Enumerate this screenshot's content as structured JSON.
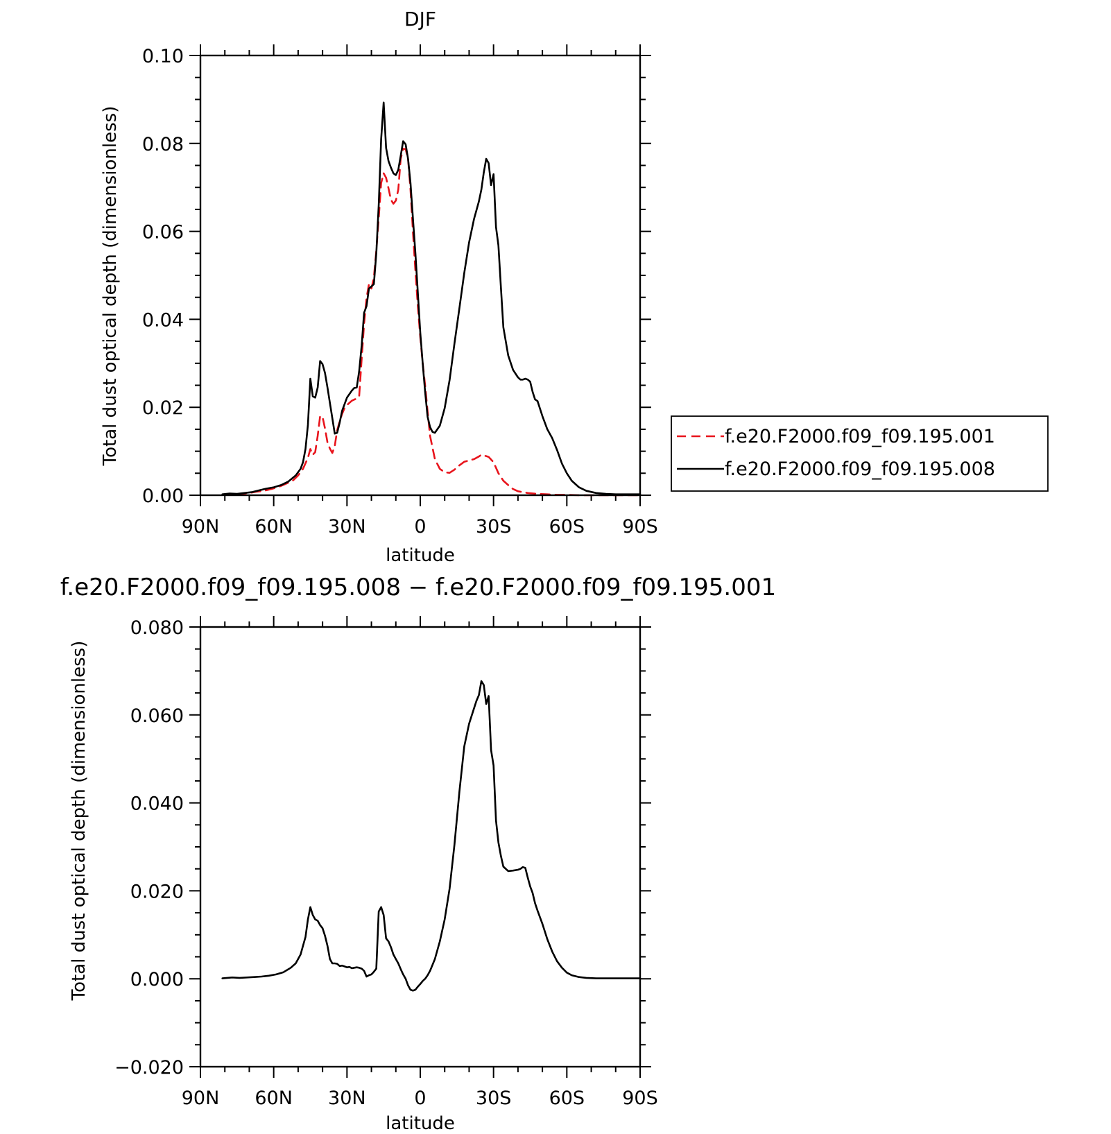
{
  "chart_data": [
    {
      "type": "line",
      "title": "DJF",
      "xlabel": "latitude",
      "ylabel": "Total dust optical depth (dimensionless)",
      "x_ticks": [
        {
          "value": 90,
          "label": "90N"
        },
        {
          "value": 60,
          "label": "60N"
        },
        {
          "value": 30,
          "label": "30N"
        },
        {
          "value": 0,
          "label": "0"
        },
        {
          "value": -30,
          "label": "30S"
        },
        {
          "value": -60,
          "label": "60S"
        },
        {
          "value": -90,
          "label": "90S"
        }
      ],
      "y_ticks": [
        "0.00",
        "0.02",
        "0.04",
        "0.06",
        "0.08",
        "0.10"
      ],
      "xlim": [
        90,
        -90
      ],
      "ylim": [
        0,
        0.1
      ],
      "legend_position": "right",
      "series": [
        {
          "name": "f.e20.F2000.f09_f09.195.001",
          "color": "#e8141c",
          "dash": "dashed",
          "x": [
            81,
            77,
            73,
            70,
            67,
            64,
            61,
            58,
            55,
            52,
            50,
            48,
            46,
            45,
            44,
            43,
            42,
            41,
            40,
            39,
            38,
            37,
            36,
            35,
            34,
            33,
            32,
            31,
            30,
            28,
            26,
            25,
            24,
            23,
            22,
            21,
            20,
            19,
            18,
            17,
            16,
            15,
            14,
            13,
            12,
            11,
            10,
            9,
            8,
            7,
            6,
            5,
            4,
            3,
            2,
            1,
            0,
            -1,
            -2,
            -3,
            -4,
            -6,
            -8,
            -10,
            -12,
            -14,
            -16,
            -18,
            -20,
            -22,
            -24,
            -25,
            -26,
            -27,
            -28,
            -30,
            -32,
            -34,
            -36,
            -38,
            -40,
            -44,
            -48,
            -52,
            -56,
            -60,
            -65,
            -70,
            -75,
            -80,
            -85,
            -90
          ],
          "y": [
            0.0001,
            0.0002,
            0.0003,
            0.0005,
            0.0008,
            0.001,
            0.0014,
            0.0019,
            0.0026,
            0.0034,
            0.0045,
            0.006,
            0.0085,
            0.0105,
            0.0092,
            0.0098,
            0.0135,
            0.018,
            0.0178,
            0.0152,
            0.012,
            0.0106,
            0.0096,
            0.0112,
            0.0148,
            0.0168,
            0.0185,
            0.0198,
            0.0205,
            0.0215,
            0.022,
            0.0225,
            0.031,
            0.039,
            0.0448,
            0.048,
            0.047,
            0.0495,
            0.0556,
            0.063,
            0.071,
            0.0732,
            0.0722,
            0.0698,
            0.0672,
            0.0663,
            0.067,
            0.0695,
            0.0765,
            0.0788,
            0.0787,
            0.0765,
            0.0695,
            0.06,
            0.051,
            0.043,
            0.036,
            0.03,
            0.025,
            0.019,
            0.0135,
            0.0082,
            0.006,
            0.0052,
            0.0051,
            0.0058,
            0.0068,
            0.0076,
            0.0079,
            0.0082,
            0.0088,
            0.0092,
            0.009,
            0.0089,
            0.0087,
            0.0075,
            0.005,
            0.0033,
            0.0023,
            0.0014,
            0.0009,
            0.0005,
            0.0003,
            0.0002,
            0.0001,
            0.0001,
            0,
            0,
            0,
            0,
            0,
            0
          ]
        },
        {
          "name": "f.e20.F2000.f09_f09.195.008",
          "color": "#000000",
          "dash": "solid",
          "x": [
            81,
            78,
            75,
            72,
            69,
            66,
            63,
            60,
            57,
            54,
            51,
            49,
            48,
            47,
            46,
            45,
            44,
            43,
            42,
            41,
            40,
            39,
            38,
            37,
            36,
            35,
            34,
            33,
            32,
            30,
            28,
            27,
            26,
            25,
            24,
            23,
            22,
            21,
            20,
            19,
            18,
            17,
            16,
            15,
            14,
            13,
            12,
            11,
            10,
            9,
            8,
            7,
            6,
            5,
            4,
            3,
            2,
            1,
            0,
            -1,
            -2,
            -3,
            -4,
            -5,
            -6,
            -8,
            -10,
            -12,
            -14,
            -16,
            -18,
            -20,
            -22,
            -23,
            -24,
            -25,
            -26,
            -27,
            -28,
            -29,
            -30,
            -31,
            -32,
            -33,
            -34,
            -36,
            -38,
            -40,
            -41,
            -42,
            -43,
            -44,
            -45,
            -46,
            -47,
            -48,
            -50,
            -52,
            -54,
            -56,
            -58,
            -60,
            -62,
            -65,
            -68,
            -72,
            -76,
            -80,
            -85,
            -90
          ],
          "y": [
            0.0002,
            0.0004,
            0.0003,
            0.0005,
            0.0007,
            0.0011,
            0.0015,
            0.0018,
            0.0023,
            0.0031,
            0.0045,
            0.006,
            0.0075,
            0.0105,
            0.016,
            0.0265,
            0.0225,
            0.0222,
            0.0245,
            0.0305,
            0.0298,
            0.0278,
            0.0245,
            0.021,
            0.0175,
            0.014,
            0.0142,
            0.0165,
            0.0192,
            0.0222,
            0.0238,
            0.0244,
            0.0245,
            0.0282,
            0.034,
            0.0415,
            0.043,
            0.047,
            0.0475,
            0.048,
            0.055,
            0.066,
            0.081,
            0.0893,
            0.079,
            0.076,
            0.0745,
            0.0732,
            0.0728,
            0.074,
            0.0772,
            0.0805,
            0.0798,
            0.0765,
            0.071,
            0.063,
            0.055,
            0.046,
            0.037,
            0.03,
            0.0235,
            0.0178,
            0.0155,
            0.0144,
            0.0142,
            0.0158,
            0.0198,
            0.0262,
            0.0345,
            0.0425,
            0.0505,
            0.0575,
            0.0628,
            0.0648,
            0.0668,
            0.0695,
            0.0734,
            0.0765,
            0.0755,
            0.0705,
            0.073,
            0.061,
            0.0568,
            0.0475,
            0.0382,
            0.0318,
            0.0285,
            0.0268,
            0.0263,
            0.0263,
            0.0265,
            0.0263,
            0.0258,
            0.0235,
            0.0218,
            0.0214,
            0.018,
            0.015,
            0.013,
            0.0103,
            0.0072,
            0.005,
            0.0033,
            0.0018,
            0.001,
            0.0005,
            0.0003,
            0.0002,
            0.0002,
            0.0002
          ]
        }
      ]
    },
    {
      "type": "line",
      "title": "f.e20.F2000.f09_f09.195.008 − f.e20.F2000.f09_f09.195.001",
      "xlabel": "latitude",
      "ylabel": "Total dust optical depth (dimensionless)",
      "x_ticks": [
        {
          "value": 90,
          "label": "90N"
        },
        {
          "value": 60,
          "label": "60N"
        },
        {
          "value": 30,
          "label": "30N"
        },
        {
          "value": 0,
          "label": "0"
        },
        {
          "value": -30,
          "label": "30S"
        },
        {
          "value": -60,
          "label": "60S"
        },
        {
          "value": -90,
          "label": "90S"
        }
      ],
      "y_ticks": [
        "−0.020",
        "0.000",
        "0.020",
        "0.040",
        "0.060",
        "0.080"
      ],
      "xlim": [
        90,
        -90
      ],
      "ylim": [
        -0.02,
        0.08
      ],
      "series": [
        {
          "color": "#000000",
          "dash": "solid",
          "x": [
            81,
            79,
            77,
            74,
            71,
            68,
            65,
            62,
            59,
            56,
            53,
            51,
            49,
            48,
            47,
            46,
            45,
            44,
            43,
            42,
            41,
            40,
            39,
            38,
            37,
            36,
            35,
            34,
            33,
            32,
            31,
            30,
            29,
            28,
            27,
            26,
            25,
            24,
            23,
            22,
            21,
            20,
            19,
            18,
            17,
            16,
            15,
            14,
            13,
            12,
            11,
            10,
            9,
            8,
            7,
            6,
            5,
            4,
            3,
            2,
            1,
            0,
            -1,
            -2,
            -3,
            -4,
            -6,
            -8,
            -10,
            -12,
            -14,
            -16,
            -18,
            -20,
            -22,
            -23,
            -24,
            -25,
            -26,
            -27,
            -28,
            -29,
            -30,
            -31,
            -32,
            -33,
            -34,
            -36,
            -38,
            -40,
            -41,
            -42,
            -43,
            -44,
            -45,
            -46,
            -47,
            -48,
            -50,
            -52,
            -54,
            -56,
            -58,
            -60,
            -62,
            -65,
            -68,
            -72,
            -76,
            -80,
            -85,
            -90
          ],
          "y": [
            0.0001,
            0.0002,
            0.0003,
            0.0002,
            0.0003,
            0.0004,
            0.0005,
            0.0007,
            0.001,
            0.0015,
            0.0025,
            0.0035,
            0.0055,
            0.0075,
            0.0095,
            0.0135,
            0.0163,
            0.0145,
            0.0135,
            0.0132,
            0.0122,
            0.0115,
            0.0098,
            0.0075,
            0.0045,
            0.0035,
            0.0035,
            0.0034,
            0.0029,
            0.003,
            0.0028,
            0.0026,
            0.0027,
            0.0024,
            0.0025,
            0.0026,
            0.0025,
            0.0023,
            0.0018,
            0.0005,
            0.0008,
            0.001,
            0.0016,
            0.0023,
            0.0153,
            0.0163,
            0.0145,
            0.0092,
            0.0085,
            0.0072,
            0.0055,
            0.0045,
            0.0035,
            0.0022,
            0.001,
            0.0,
            -0.0015,
            -0.0025,
            -0.0027,
            -0.0025,
            -0.0018,
            -0.0012,
            -0.0005,
            0.0,
            0.0008,
            0.0018,
            0.0045,
            0.0085,
            0.0135,
            0.0205,
            0.0305,
            0.0425,
            0.0528,
            0.058,
            0.0615,
            0.0632,
            0.0645,
            0.0677,
            0.0668,
            0.0625,
            0.0643,
            0.052,
            0.0485,
            0.036,
            0.031,
            0.028,
            0.0255,
            0.0245,
            0.0246,
            0.0248,
            0.025,
            0.0254,
            0.0252,
            0.023,
            0.021,
            0.0195,
            0.0172,
            0.0155,
            0.0125,
            0.009,
            0.0062,
            0.004,
            0.0025,
            0.0014,
            0.0008,
            0.0004,
            0.0002,
            0.0001,
            0.0001,
            0.0001,
            0.0001,
            0.0001
          ]
        }
      ]
    }
  ]
}
